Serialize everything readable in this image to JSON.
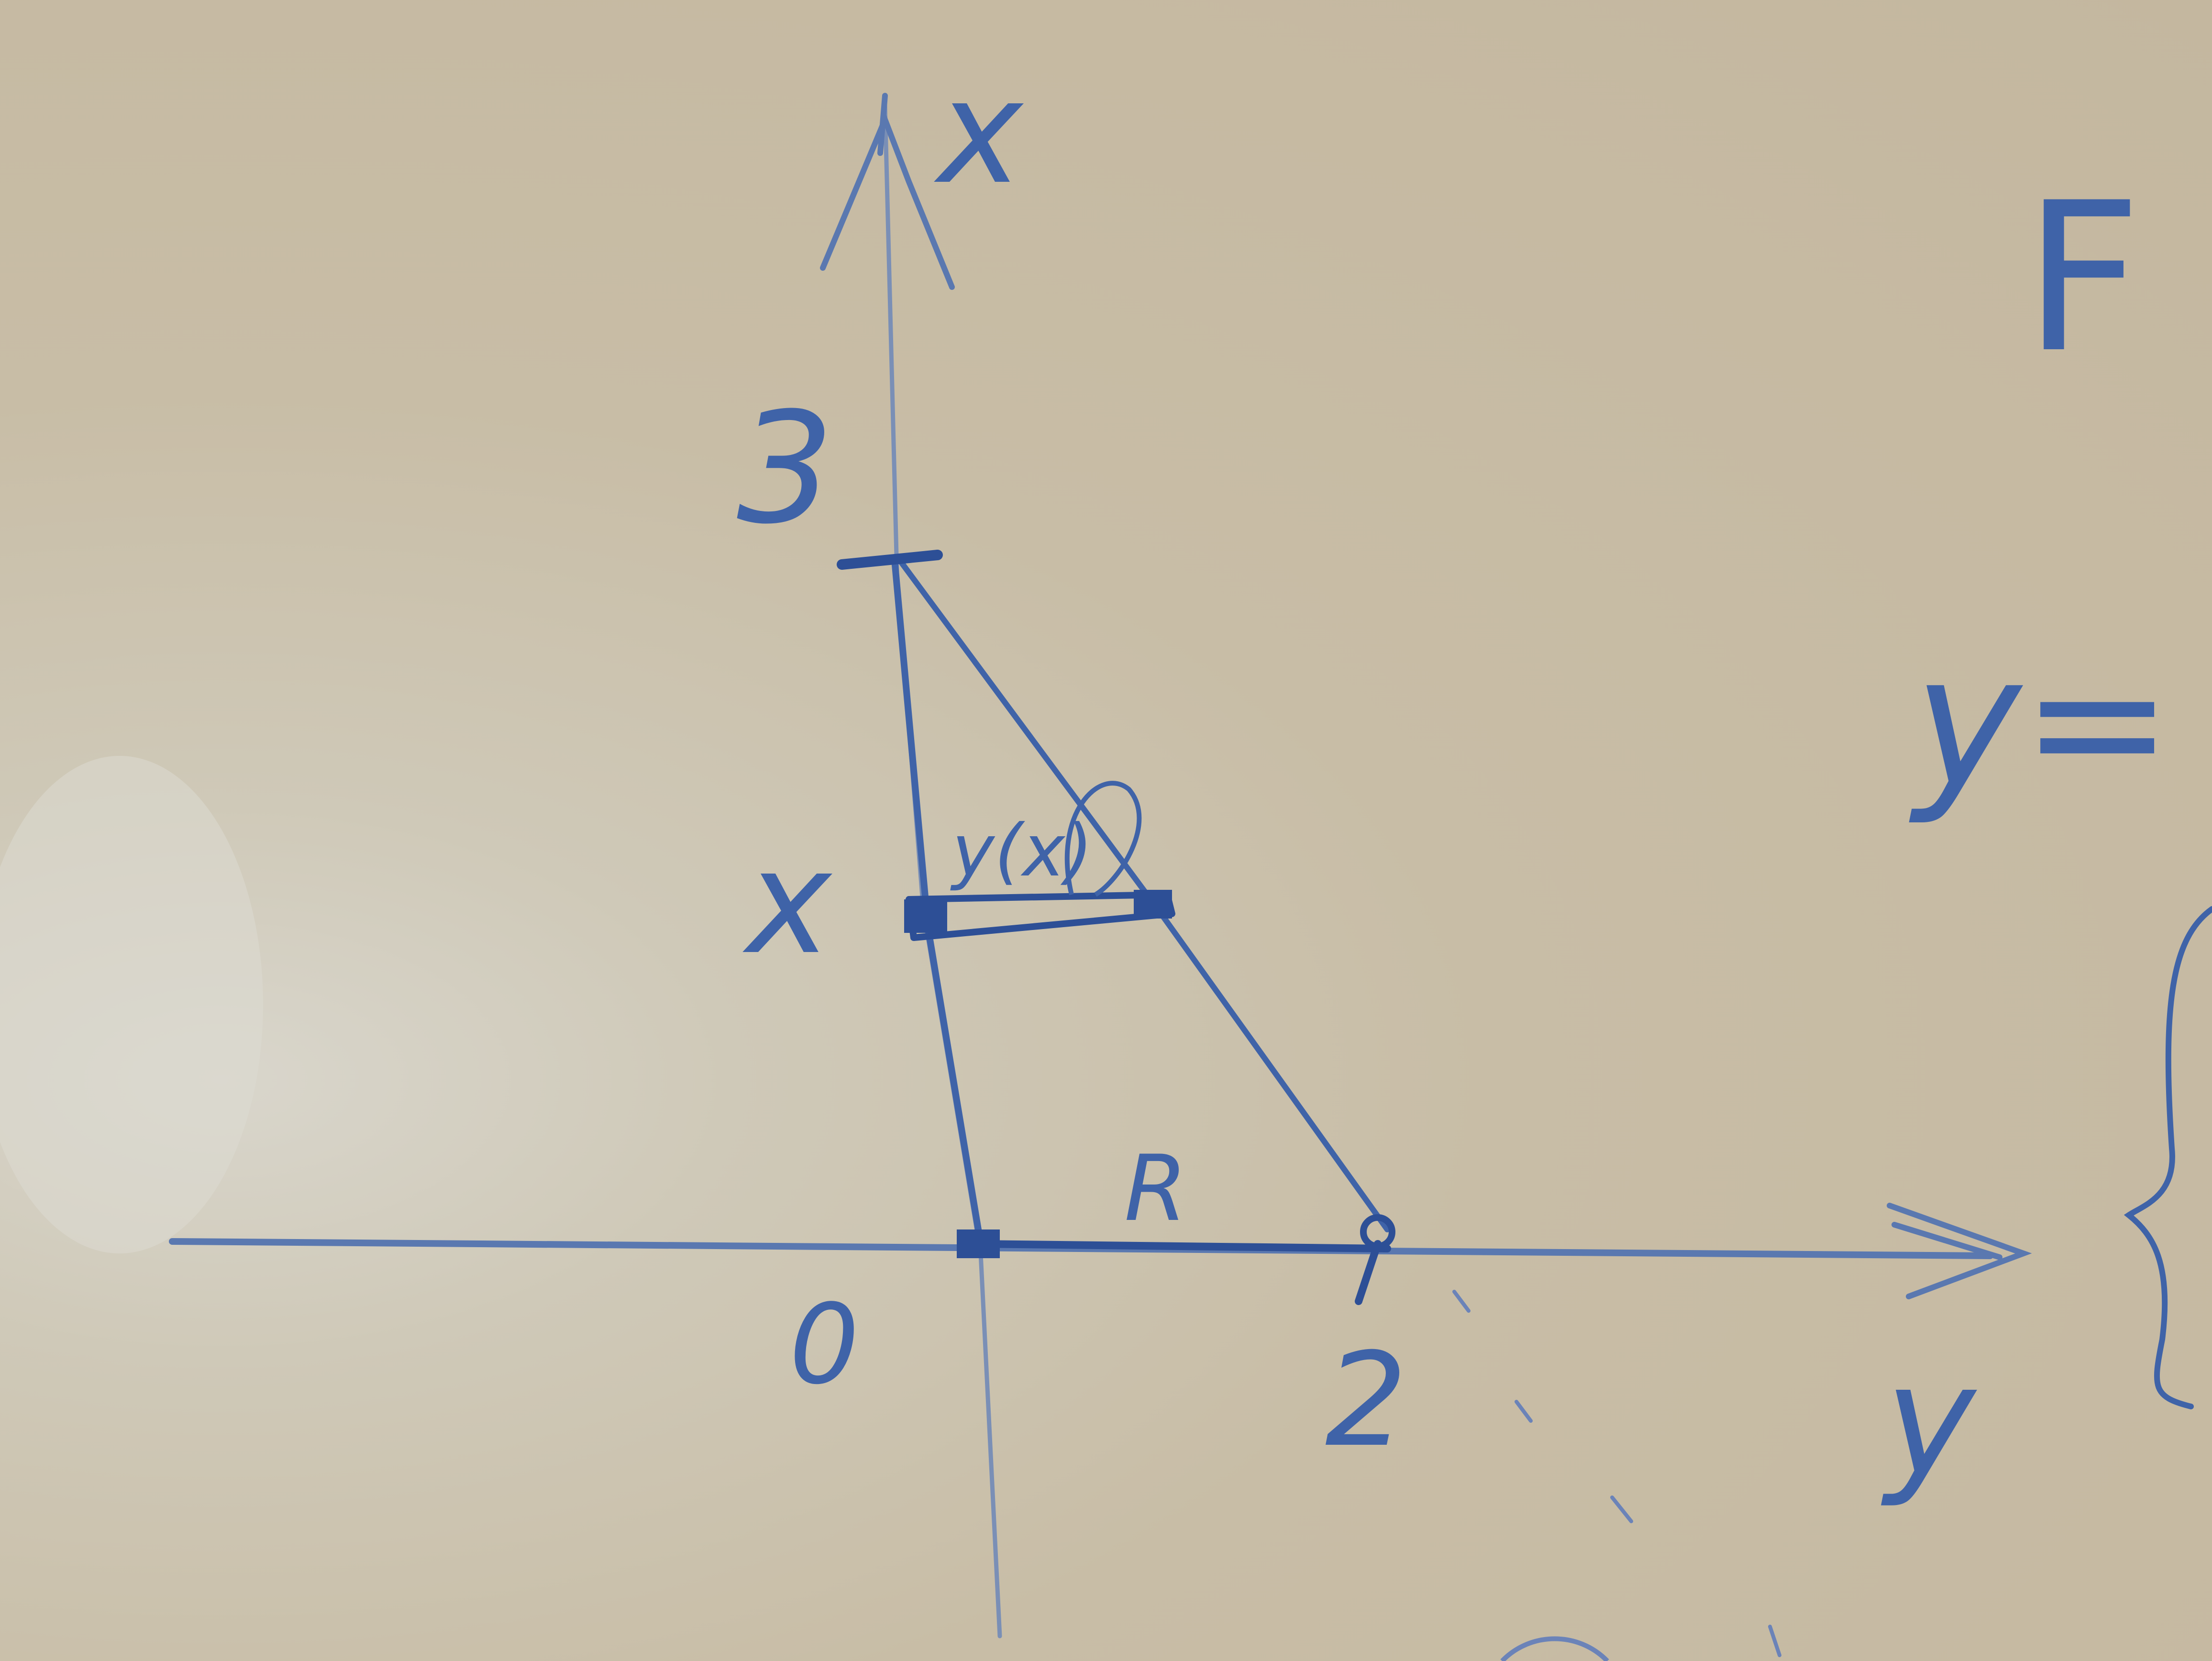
{
  "figure": {
    "labels": {
      "axis_vertical": "x",
      "axis_horizontal": "y",
      "origin": "0",
      "tick_vertical": "3",
      "tick_horizontal": "2",
      "level_x": "x",
      "segment_label": "y(x)",
      "region": "R"
    },
    "right_side": {
      "letter_f": "F",
      "equation_start": "y="
    },
    "colors": {
      "marker": "#3f63a8",
      "marker_dark": "#2d4f96",
      "board": "#c9bea7"
    }
  }
}
